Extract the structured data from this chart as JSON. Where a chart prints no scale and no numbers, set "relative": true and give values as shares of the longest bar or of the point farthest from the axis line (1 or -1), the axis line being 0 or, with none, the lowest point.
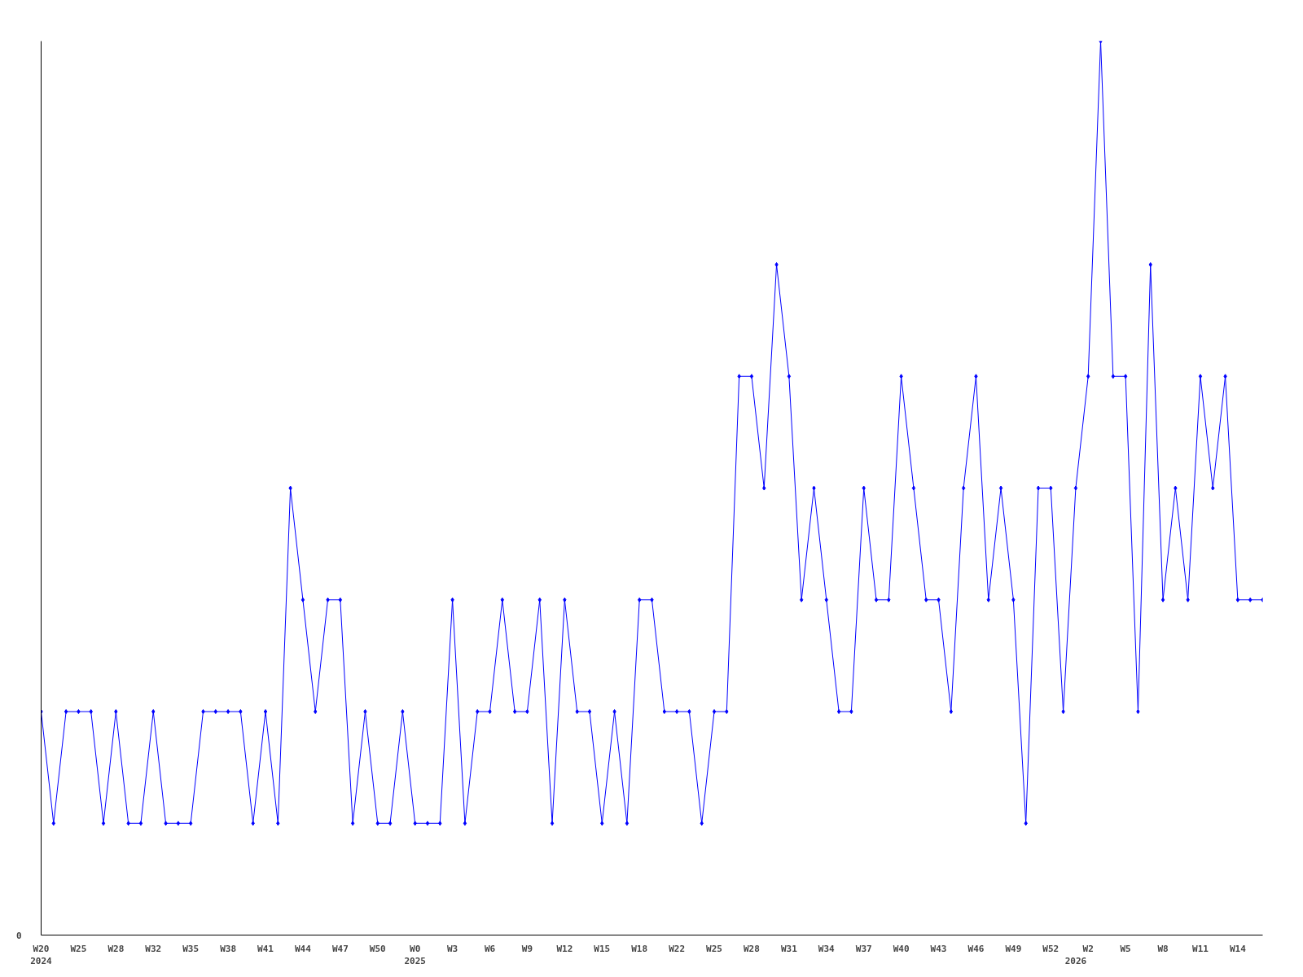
{
  "chart_data": {
    "type": "line",
    "relative": true,
    "marker": "diamond",
    "line_style": "solid",
    "grid": false,
    "annotations": [
      "0"
    ],
    "categories": [
      "W20\n2024",
      null,
      null,
      "W25",
      null,
      null,
      "W28",
      null,
      null,
      "W32",
      null,
      null,
      "W35",
      null,
      null,
      "W38",
      null,
      null,
      "W41",
      null,
      null,
      "W44",
      null,
      null,
      "W47",
      null,
      null,
      "W50",
      null,
      null,
      "W0\n2025",
      null,
      null,
      "W3",
      null,
      null,
      "W6",
      null,
      null,
      "W9",
      null,
      null,
      "W12",
      null,
      null,
      "W15",
      null,
      null,
      "W18",
      null,
      null,
      "W22",
      null,
      null,
      "W25",
      null,
      null,
      "W28",
      null,
      null,
      "W31",
      null,
      null,
      "W34",
      null,
      null,
      "W37",
      null,
      null,
      "W40",
      null,
      null,
      "W43",
      null,
      null,
      "W46",
      null,
      null,
      "W49",
      null,
      null,
      "W52",
      null,
      "\n2026",
      "W2",
      null,
      null,
      "W5",
      null,
      null,
      "W8",
      null,
      null,
      "W11",
      null,
      null,
      "W14",
      null,
      null
    ],
    "series": [
      {
        "color": "#0000ff",
        "values": [
          0.25,
          0.125,
          0.25,
          0.25,
          0.25,
          0.125,
          0.25,
          0.125,
          0.125,
          0.25,
          0.125,
          0.125,
          0.125,
          0.25,
          0.25,
          0.25,
          0.25,
          0.125,
          0.25,
          0.125,
          0.5,
          0.375,
          0.25,
          0.375,
          0.375,
          0.125,
          0.25,
          0.125,
          0.125,
          0.25,
          0.125,
          0.125,
          0.125,
          0.375,
          0.125,
          0.25,
          0.25,
          0.375,
          0.25,
          0.25,
          0.375,
          0.125,
          0.375,
          0.25,
          0.25,
          0.125,
          0.25,
          0.125,
          0.375,
          0.375,
          0.25,
          0.25,
          0.25,
          0.125,
          0.25,
          0.25,
          0.625,
          0.625,
          0.5,
          0.75,
          0.625,
          0.375,
          0.5,
          0.375,
          0.25,
          0.25,
          0.5,
          0.375,
          0.375,
          0.625,
          0.5,
          0.375,
          0.375,
          0.25,
          0.5,
          0.625,
          0.375,
          0.5,
          0.375,
          0.125,
          0.5,
          0.5,
          0.25,
          0.5,
          0.625,
          1,
          0.625,
          0.625,
          0.25,
          0.75,
          0.375,
          0.5,
          0.375,
          0.625,
          0.5,
          0.625,
          0.375,
          0.375,
          0.375
        ]
      }
    ]
  }
}
